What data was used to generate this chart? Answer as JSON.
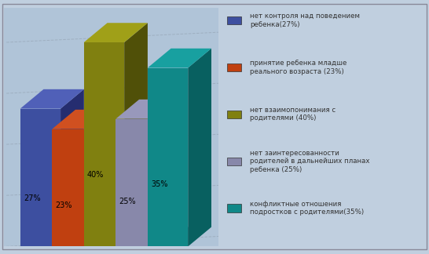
{
  "values": [
    27,
    23,
    40,
    25,
    35
  ],
  "labels": [
    "27%",
    "23%",
    "40%",
    "25%",
    "35%"
  ],
  "bar_colors_front": [
    "#3D4FA0",
    "#C04010",
    "#808010",
    "#8888AA",
    "#108888"
  ],
  "bar_colors_side": [
    "#252D70",
    "#882A08",
    "#505008",
    "#555575",
    "#086060"
  ],
  "bar_colors_top": [
    "#5060B8",
    "#D05020",
    "#A0A018",
    "#9898BB",
    "#18A0A0"
  ],
  "legend_labels": [
    "нет контроля над поведением\nребенка(27%)",
    "принятие ребенка младше\nреального возраста (23%)",
    "нет взаимопонимания с\nродителями (40%)",
    "нет заинтересованности\nродителей в дальнейших планах\nребенка (25%)",
    "конфликтные отношения\nподростков с родителями(35%)"
  ],
  "legend_colors": [
    "#3D4FA0",
    "#C04010",
    "#808010",
    "#8888AA",
    "#108888"
  ],
  "bg_color": "#C0CFDF",
  "chart_bg_left": "#B0C4D8",
  "chart_bg_right": "#D8E4EF",
  "grid_color": "#9AAABB",
  "ylim": [
    0,
    42
  ]
}
